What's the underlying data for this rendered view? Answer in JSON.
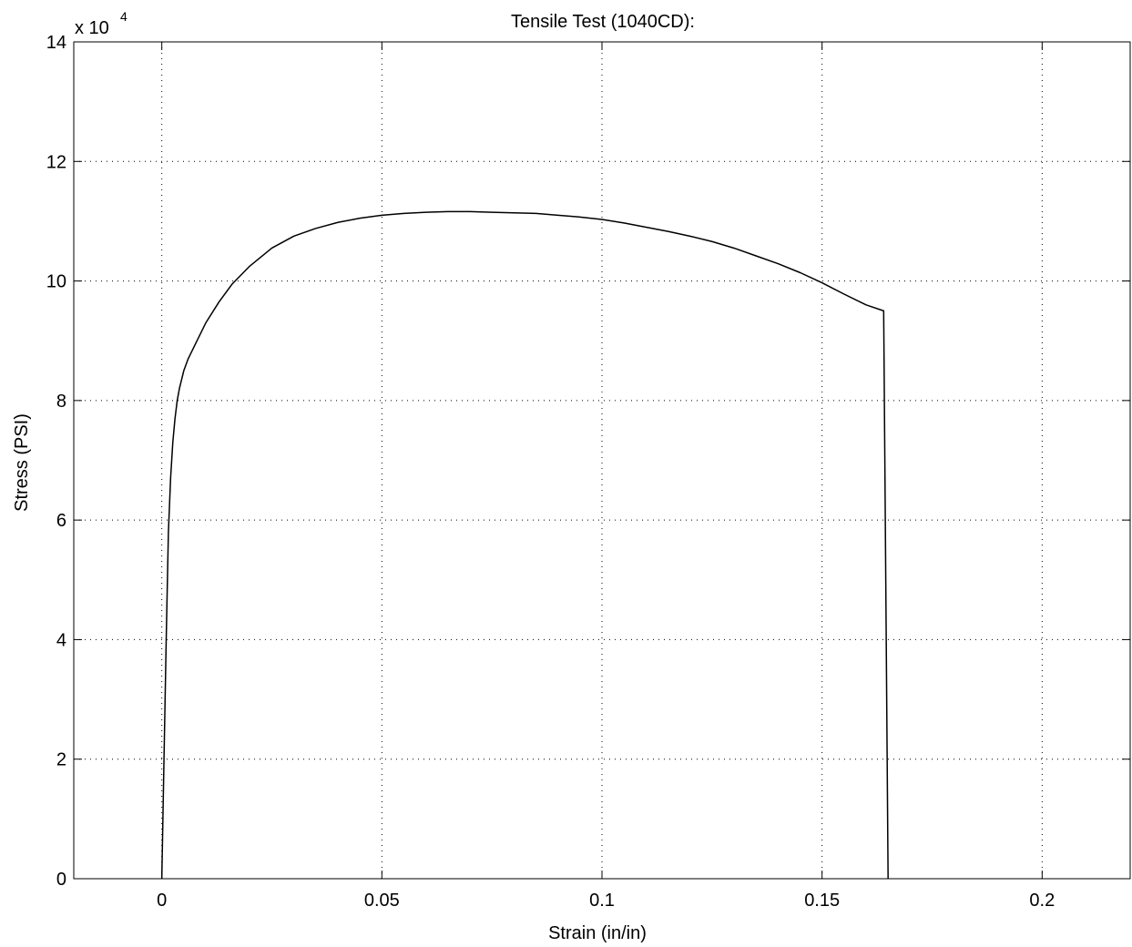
{
  "chart_data": {
    "type": "line",
    "title": "Tensile Test (1040CD):",
    "xlabel": "Strain (in/in)",
    "ylabel": "Stress (PSI)",
    "y_exponent_base": "x 10",
    "y_exponent_power": "4",
    "xlim": [
      -0.02,
      0.22
    ],
    "ylim": [
      0,
      140000
    ],
    "x_tick_values": [
      0,
      0.05,
      0.1,
      0.15,
      0.2
    ],
    "x_tick_labels": [
      "0",
      "0.05",
      "0.1",
      "0.15",
      "0.2"
    ],
    "y_tick_values": [
      0,
      20000,
      40000,
      60000,
      80000,
      100000,
      120000,
      140000
    ],
    "y_tick_labels": [
      "0",
      "2",
      "4",
      "6",
      "8",
      "10",
      "12",
      "14"
    ],
    "grid": true,
    "line_color": "#000000",
    "series": [
      {
        "x": [
          0,
          0.0005,
          0.001,
          0.0015,
          0.002,
          0.0025,
          0.003,
          0.0035,
          0.004,
          0.005,
          0.006,
          0.008,
          0.01,
          0.013,
          0.016,
          0.02,
          0.025,
          0.03,
          0.035,
          0.04,
          0.045,
          0.05,
          0.055,
          0.06,
          0.065,
          0.07,
          0.075,
          0.08,
          0.085,
          0.09,
          0.095,
          0.1,
          0.105,
          0.11,
          0.115,
          0.12,
          0.125,
          0.13,
          0.135,
          0.14,
          0.145,
          0.15,
          0.155,
          0.16,
          0.164,
          0.165
        ],
        "y": [
          0,
          20000,
          40000,
          58000,
          67000,
          73000,
          77000,
          80000,
          82000,
          85000,
          87000,
          90000,
          93000,
          96500,
          99500,
          102500,
          105500,
          107500,
          108800,
          109800,
          110500,
          111000,
          111300,
          111500,
          111600,
          111600,
          111500,
          111400,
          111300,
          111000,
          110700,
          110300,
          109700,
          109000,
          108300,
          107500,
          106600,
          105500,
          104200,
          102900,
          101400,
          99700,
          97800,
          96000,
          95000,
          0
        ]
      }
    ]
  }
}
